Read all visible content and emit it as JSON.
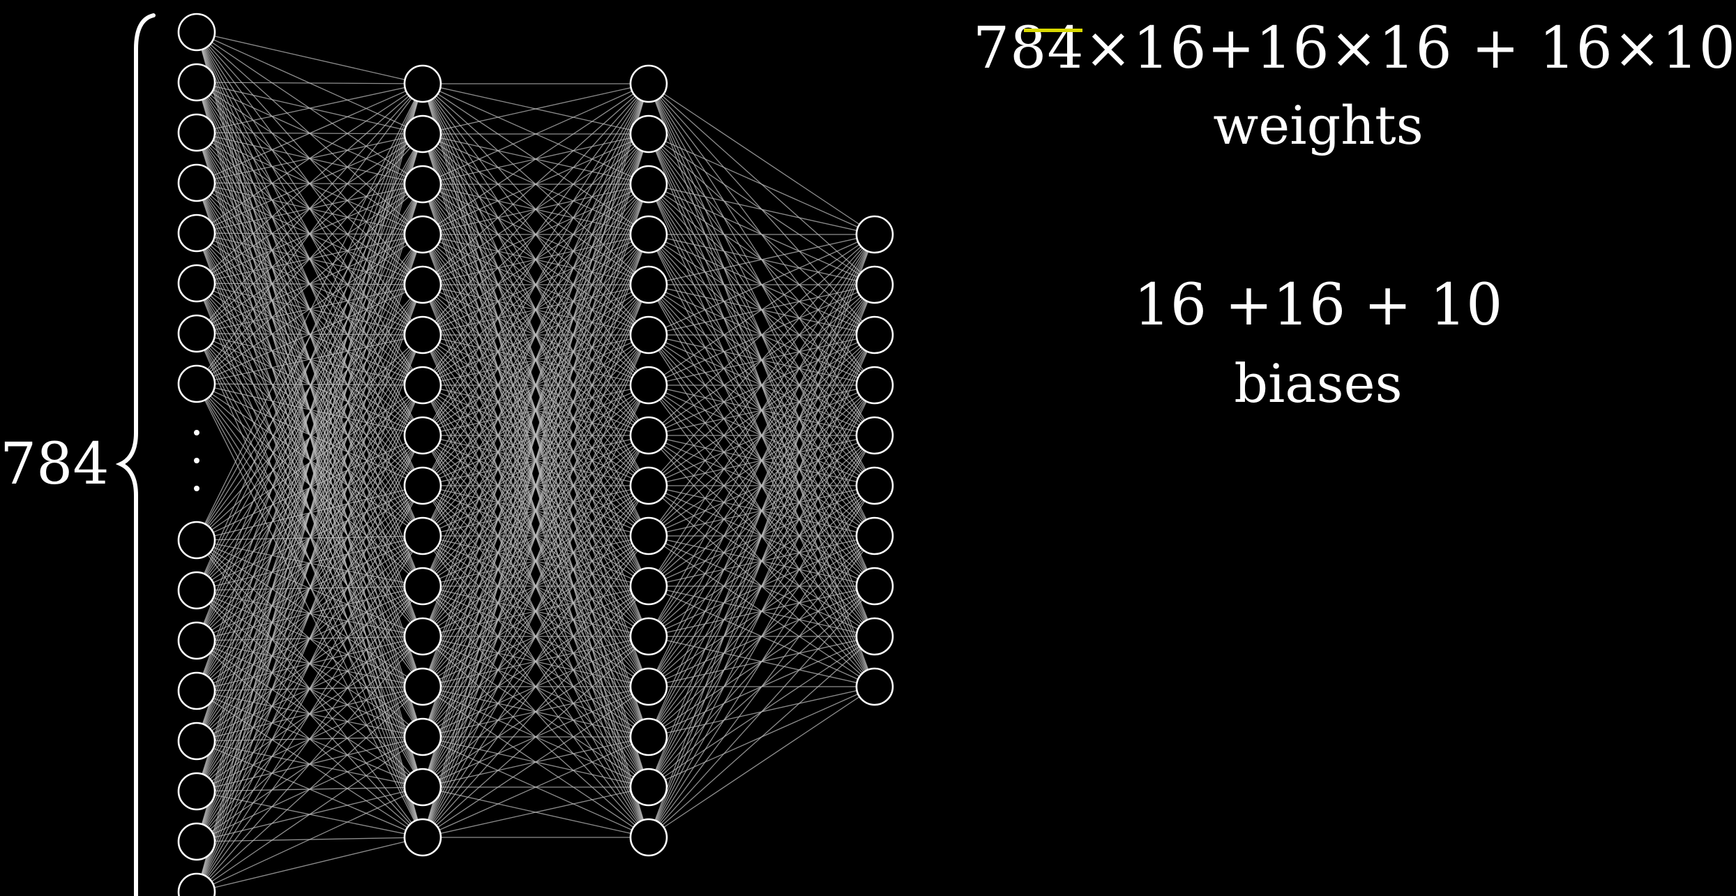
{
  "formula": {
    "weights_expression": "784×16+16×16 + 16×10",
    "weights_label": "weights",
    "biases_expression": "16  +16 + 10",
    "biases_label": "biases"
  },
  "network": {
    "input_count_label": "784",
    "layer_sizes": [
      784,
      16,
      16,
      10
    ],
    "visible_nodes": [
      16,
      16,
      16,
      10
    ]
  },
  "colors": {
    "background": "#000000",
    "node_stroke": "#ffffff",
    "edge": "#bdbdbd",
    "highlight": "#d8d800",
    "text": "#ffffff"
  }
}
